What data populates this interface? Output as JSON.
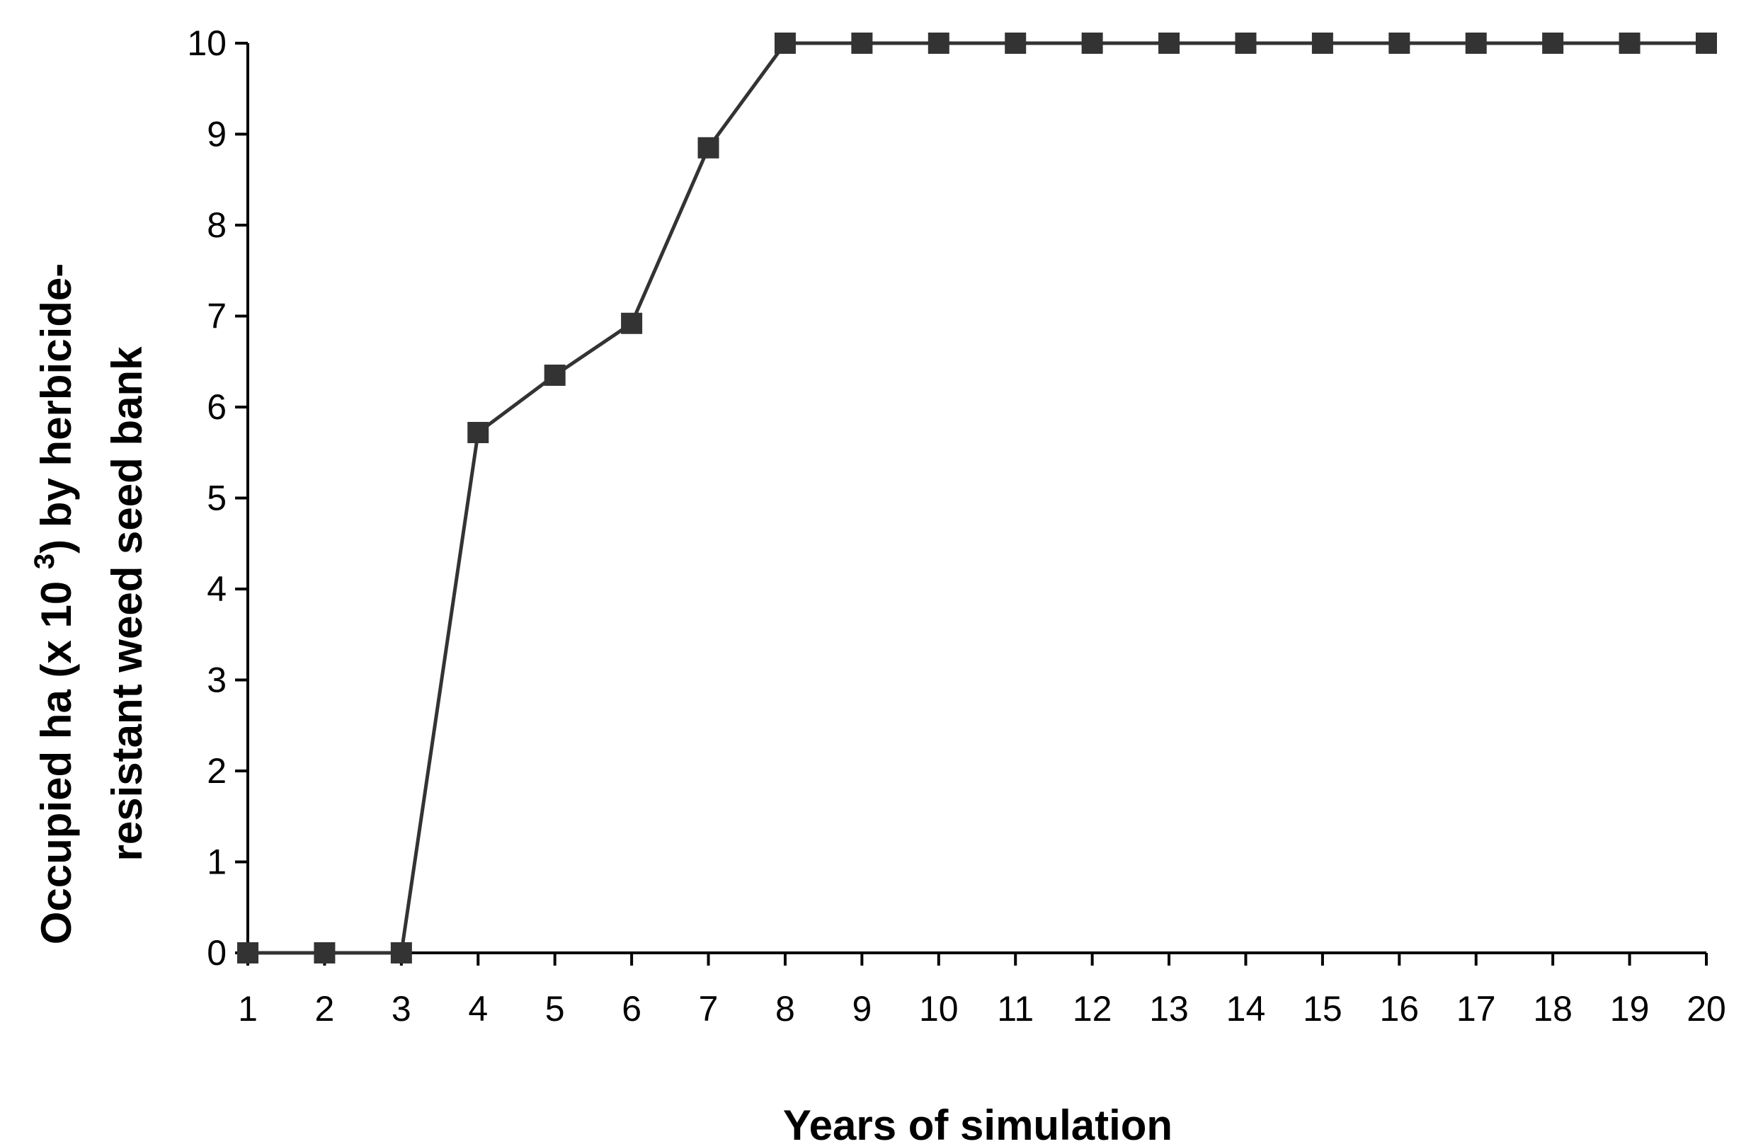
{
  "chart_data": {
    "type": "line",
    "xlabel": "Years of simulation",
    "ylabel": {
      "line1_prefix": "Occupied ha (x 10 ",
      "line1_superscript": "3",
      "line1_suffix": ") by herbicide-",
      "line2": "resistant weed seed bank"
    },
    "x": [
      1,
      2,
      3,
      4,
      5,
      6,
      7,
      8,
      9,
      10,
      11,
      12,
      13,
      14,
      15,
      16,
      17,
      18,
      19,
      20
    ],
    "series": [
      {
        "values": [
          0,
          0,
          0,
          5.72,
          6.35,
          6.92,
          8.85,
          10,
          10,
          10,
          10,
          10,
          10,
          10,
          10,
          10,
          10,
          10,
          10,
          10
        ],
        "color": "#333333",
        "marker": "square"
      }
    ],
    "xlim": [
      1,
      20
    ],
    "ylim": [
      0,
      10
    ],
    "yticks": [
      0,
      1,
      2,
      3,
      4,
      5,
      6,
      7,
      8,
      9,
      10
    ],
    "grid": false,
    "legend": "none"
  }
}
